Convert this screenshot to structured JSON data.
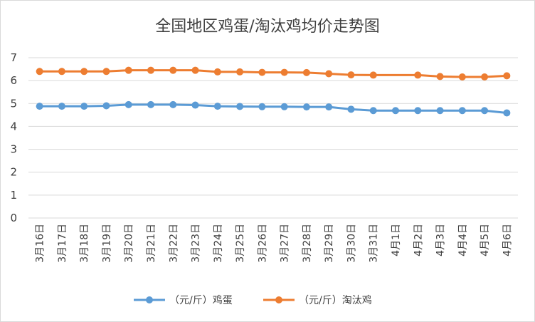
{
  "chart_data": {
    "type": "line",
    "title": "全国地区鸡蛋/淘汰鸡均价走势图",
    "categories": [
      "3月16日",
      "3月17日",
      "3月18日",
      "3月19日",
      "3月20日",
      "3月21日",
      "3月22日",
      "3月23日",
      "3月24日",
      "3月25日",
      "3月26日",
      "3月27日",
      "3月28日",
      "3月29日",
      "3月30日",
      "3月31日",
      "4月1日",
      "4月2日",
      "4月3日",
      "4月4日",
      "4月5日",
      "4月6日"
    ],
    "series": [
      {
        "name": "（元/斤）鸡蛋",
        "color": "#5b9bd5",
        "values": [
          4.88,
          4.88,
          4.88,
          4.9,
          4.95,
          4.95,
          4.95,
          4.93,
          4.88,
          4.87,
          4.86,
          4.86,
          4.85,
          4.85,
          4.75,
          4.69,
          4.69,
          4.69,
          4.69,
          4.69,
          4.69,
          4.59
        ]
      },
      {
        "name": "（元/斤）淘汰鸡",
        "color": "#ed7d31",
        "values": [
          6.4,
          6.4,
          6.4,
          6.4,
          6.45,
          6.45,
          6.45,
          6.45,
          6.38,
          6.38,
          6.36,
          6.36,
          6.35,
          6.3,
          6.25,
          6.24,
          null,
          6.24,
          6.18,
          6.16,
          6.16,
          6.21
        ]
      }
    ],
    "ylim": [
      0,
      7
    ],
    "yticks": [
      "0",
      "1",
      "2",
      "3",
      "4",
      "5",
      "6",
      "7"
    ],
    "grid": true,
    "legend": "bottom"
  }
}
